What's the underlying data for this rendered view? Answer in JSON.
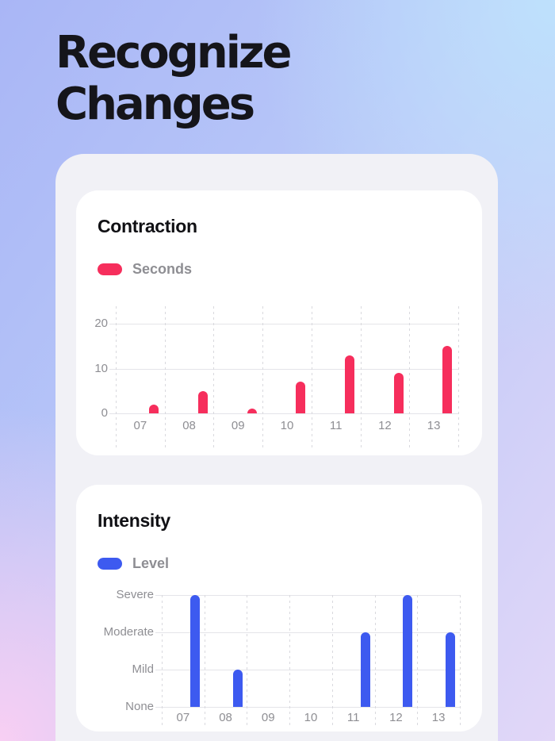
{
  "heading": {
    "line1": "Recognize",
    "line2": "Changes"
  },
  "chart_data": [
    {
      "type": "bar",
      "title": "Contraction",
      "categories": [
        "07",
        "08",
        "09",
        "10",
        "11",
        "12",
        "13"
      ],
      "series": [
        {
          "name": "Seconds",
          "color": "#F62E5C",
          "values": [
            2,
            5,
            1,
            7,
            13,
            9,
            15
          ]
        }
      ],
      "y_ticks": [
        0,
        10,
        20
      ],
      "ylim": [
        0,
        24
      ],
      "xlabel": "",
      "ylabel": "",
      "grid": {
        "horizontal": "solid",
        "vertical": "dashed"
      },
      "legend_position": "top-left"
    },
    {
      "type": "bar",
      "title": "Intensity",
      "categories": [
        "07",
        "08",
        "09",
        "10",
        "11",
        "12",
        "13"
      ],
      "series": [
        {
          "name": "Level",
          "color": "#3D5AF0",
          "values": [
            3,
            1,
            0,
            0,
            2,
            3,
            2
          ]
        }
      ],
      "y_tick_labels": [
        "None",
        "Mild",
        "Moderate",
        "Severe"
      ],
      "value_labels": {
        "0": "None",
        "1": "Mild",
        "2": "Moderate",
        "3": "Severe"
      },
      "ylim": [
        0,
        3
      ],
      "xlabel": "",
      "ylabel": "",
      "grid": {
        "horizontal": "solid",
        "vertical": "dashed"
      },
      "legend_position": "top-left"
    }
  ],
  "colors": {
    "accent_pink": "#F62E5C",
    "accent_blue": "#3D5AF0",
    "background_gradient_top_left": "#A9B6F6",
    "background_gradient_top_right": "#BEE1FC",
    "background_gradient_bottom_left": "#F8CFF3",
    "background_gradient_bottom_right": "#E2D7F8",
    "panel": "#F1F1F6",
    "card": "#FFFFFF",
    "axis_label": "#8E8E93",
    "gridline": "#E4E4E9",
    "heading_text": "#15151A"
  }
}
